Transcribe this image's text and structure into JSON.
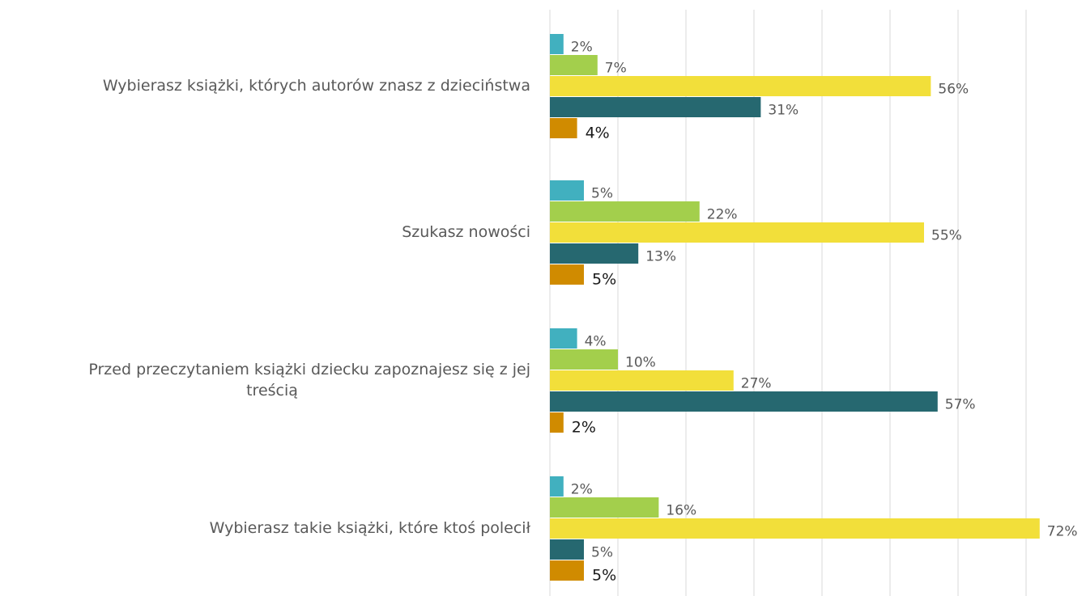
{
  "chart_data": {
    "type": "bar",
    "orientation": "horizontal",
    "title": "",
    "xlabel": "",
    "ylabel": "",
    "xlim": [
      0,
      75
    ],
    "grid": true,
    "legend": "none",
    "categories": [
      {
        "lines": [
          "Wybierasz książki, których autorów znasz z dzieciństwa"
        ]
      },
      {
        "lines": [
          "Szukasz nowości"
        ]
      },
      {
        "lines": [
          "Przed przeczytaniem książki dziecku zapoznajesz się z jej",
          "treścią"
        ]
      },
      {
        "lines": [
          "Wybierasz takie książki, które ktoś polecił"
        ]
      }
    ],
    "series": [
      {
        "color": "#41b0bf",
        "values": [
          2,
          5,
          4,
          2
        ],
        "labels": [
          "2%",
          "5%",
          "4%",
          "2%"
        ]
      },
      {
        "color": "#a3cf4c",
        "values": [
          7,
          22,
          10,
          16
        ],
        "labels": [
          "7%",
          "22%",
          "10%",
          "16%"
        ]
      },
      {
        "color": "#f2df3a",
        "values": [
          56,
          55,
          27,
          72
        ],
        "labels": [
          "56%",
          "55%",
          "27%",
          "72%"
        ]
      },
      {
        "color": "#266870",
        "values": [
          31,
          13,
          57,
          5
        ],
        "labels": [
          "31%",
          "13%",
          "57%",
          "5%"
        ]
      },
      {
        "color": "#d08b00",
        "values": [
          4,
          5,
          2,
          5
        ],
        "labels": [
          "4%",
          "5%",
          "2%",
          "5%"
        ]
      }
    ]
  }
}
